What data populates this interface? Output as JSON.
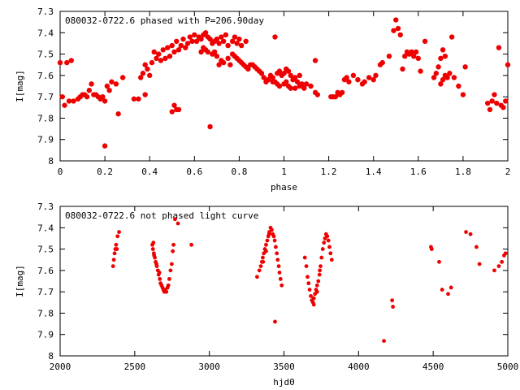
{
  "chart_data": [
    {
      "type": "scatter",
      "title": "080032-0722.6 phased with P=206.90day",
      "xlabel": "phase",
      "ylabel": "I[mag]",
      "xlim": [
        0,
        2
      ],
      "ylim": [
        7.3,
        8
      ],
      "y_inverted": true,
      "xticks": [
        "0",
        "0.2",
        "0.4",
        "0.6",
        "0.8",
        "1",
        "1.2",
        "1.4",
        "1.6",
        "1.8",
        "2"
      ],
      "yticks": [
        "7.3",
        "7.4",
        "7.5",
        "7.6",
        "7.7",
        "7.8",
        "7.9",
        "8"
      ],
      "marker_color": "#ee0000",
      "points": [
        [
          0.0,
          7.54
        ],
        [
          0.01,
          7.7
        ],
        [
          0.02,
          7.74
        ],
        [
          0.03,
          7.54
        ],
        [
          0.05,
          7.53
        ],
        [
          0.04,
          7.72
        ],
        [
          0.06,
          7.72
        ],
        [
          0.08,
          7.71
        ],
        [
          0.09,
          7.7
        ],
        [
          0.1,
          7.69
        ],
        [
          0.11,
          7.69
        ],
        [
          0.12,
          7.7
        ],
        [
          0.13,
          7.67
        ],
        [
          0.14,
          7.64
        ],
        [
          0.15,
          7.69
        ],
        [
          0.16,
          7.69
        ],
        [
          0.17,
          7.7
        ],
        [
          0.18,
          7.71
        ],
        [
          0.19,
          7.7
        ],
        [
          0.2,
          7.72
        ],
        [
          0.21,
          7.65
        ],
        [
          0.22,
          7.67
        ],
        [
          0.2,
          7.93
        ],
        [
          0.23,
          7.63
        ],
        [
          0.25,
          7.64
        ],
        [
          0.26,
          7.78
        ],
        [
          0.28,
          7.61
        ],
        [
          0.33,
          7.71
        ],
        [
          0.35,
          7.71
        ],
        [
          0.36,
          7.61
        ],
        [
          0.37,
          7.59
        ],
        [
          0.38,
          7.69
        ],
        [
          0.38,
          7.55
        ],
        [
          0.39,
          7.57
        ],
        [
          0.4,
          7.6
        ],
        [
          0.41,
          7.54
        ],
        [
          0.42,
          7.49
        ],
        [
          0.43,
          7.52
        ],
        [
          0.44,
          7.5
        ],
        [
          0.45,
          7.53
        ],
        [
          0.46,
          7.48
        ],
        [
          0.47,
          7.52
        ],
        [
          0.48,
          7.47
        ],
        [
          0.49,
          7.51
        ],
        [
          0.5,
          7.46
        ],
        [
          0.51,
          7.49
        ],
        [
          0.52,
          7.44
        ],
        [
          0.53,
          7.48
        ],
        [
          0.54,
          7.46
        ],
        [
          0.55,
          7.43
        ],
        [
          0.56,
          7.47
        ],
        [
          0.57,
          7.45
        ],
        [
          0.58,
          7.42
        ],
        [
          0.59,
          7.44
        ],
        [
          0.6,
          7.41
        ],
        [
          0.61,
          7.44
        ],
        [
          0.62,
          7.42
        ],
        [
          0.63,
          7.43
        ],
        [
          0.64,
          7.41
        ],
        [
          0.65,
          7.4
        ],
        [
          0.66,
          7.42
        ],
        [
          0.67,
          7.43
        ],
        [
          0.68,
          7.45
        ],
        [
          0.69,
          7.44
        ],
        [
          0.7,
          7.43
        ],
        [
          0.71,
          7.45
        ],
        [
          0.72,
          7.42
        ],
        [
          0.73,
          7.44
        ],
        [
          0.74,
          7.41
        ],
        [
          0.75,
          7.46
        ],
        [
          0.77,
          7.44
        ],
        [
          0.78,
          7.42
        ],
        [
          0.79,
          7.45
        ],
        [
          0.8,
          7.43
        ],
        [
          0.81,
          7.46
        ],
        [
          0.83,
          7.44
        ],
        [
          0.63,
          7.49
        ],
        [
          0.64,
          7.47
        ],
        [
          0.65,
          7.48
        ],
        [
          0.66,
          7.49
        ],
        [
          0.68,
          7.5
        ],
        [
          0.69,
          7.49
        ],
        [
          0.7,
          7.51
        ],
        [
          0.71,
          7.55
        ],
        [
          0.72,
          7.53
        ],
        [
          0.73,
          7.54
        ],
        [
          0.75,
          7.52
        ],
        [
          0.76,
          7.55
        ],
        [
          0.77,
          7.5
        ],
        [
          0.78,
          7.51
        ],
        [
          0.79,
          7.52
        ],
        [
          0.8,
          7.53
        ],
        [
          0.81,
          7.54
        ],
        [
          0.82,
          7.55
        ],
        [
          0.83,
          7.56
        ],
        [
          0.85,
          7.55
        ],
        [
          0.84,
          7.57
        ],
        [
          0.86,
          7.55
        ],
        [
          0.87,
          7.56
        ],
        [
          0.88,
          7.57
        ],
        [
          0.89,
          7.58
        ],
        [
          0.9,
          7.59
        ],
        [
          0.91,
          7.61
        ],
        [
          0.92,
          7.63
        ],
        [
          0.93,
          7.62
        ],
        [
          0.94,
          7.6
        ],
        [
          0.95,
          7.61
        ],
        [
          0.96,
          7.63
        ],
        [
          0.97,
          7.59
        ],
        [
          0.98,
          7.58
        ],
        [
          0.99,
          7.6
        ],
        [
          1.0,
          7.59
        ],
        [
          1.01,
          7.57
        ],
        [
          1.02,
          7.58
        ],
        [
          1.03,
          7.6
        ],
        [
          1.04,
          7.62
        ],
        [
          1.05,
          7.61
        ],
        [
          1.06,
          7.63
        ],
        [
          1.07,
          7.6
        ],
        [
          1.08,
          7.64
        ],
        [
          1.1,
          7.64
        ],
        [
          1.12,
          7.65
        ],
        [
          1.14,
          7.68
        ],
        [
          1.15,
          7.69
        ],
        [
          1.0,
          7.64
        ],
        [
          1.01,
          7.63
        ],
        [
          1.02,
          7.65
        ],
        [
          1.03,
          7.66
        ],
        [
          1.05,
          7.66
        ],
        [
          1.07,
          7.65
        ],
        [
          1.09,
          7.66
        ],
        [
          0.97,
          7.64
        ],
        [
          0.98,
          7.65
        ],
        [
          0.95,
          7.63
        ],
        [
          0.96,
          7.42
        ],
        [
          0.5,
          7.77
        ],
        [
          0.51,
          7.74
        ],
        [
          0.52,
          7.76
        ],
        [
          0.53,
          7.76
        ],
        [
          0.67,
          7.84
        ],
        [
          1.14,
          7.53
        ],
        [
          1.21,
          7.7
        ],
        [
          1.22,
          7.7
        ],
        [
          1.23,
          7.7
        ],
        [
          1.24,
          7.68
        ],
        [
          1.25,
          7.69
        ],
        [
          1.26,
          7.68
        ],
        [
          1.27,
          7.62
        ],
        [
          1.28,
          7.61
        ],
        [
          1.29,
          7.63
        ],
        [
          1.31,
          7.6
        ],
        [
          1.33,
          7.62
        ],
        [
          1.35,
          7.64
        ],
        [
          1.36,
          7.63
        ],
        [
          1.38,
          7.61
        ],
        [
          1.4,
          7.62
        ],
        [
          1.41,
          7.6
        ],
        [
          1.43,
          7.55
        ],
        [
          1.44,
          7.54
        ],
        [
          1.47,
          7.51
        ],
        [
          1.49,
          7.39
        ],
        [
          1.5,
          7.34
        ],
        [
          1.51,
          7.38
        ],
        [
          1.52,
          7.41
        ],
        [
          1.53,
          7.57
        ],
        [
          1.54,
          7.51
        ],
        [
          1.55,
          7.49
        ],
        [
          1.56,
          7.5
        ],
        [
          1.57,
          7.49
        ],
        [
          1.58,
          7.51
        ],
        [
          1.59,
          7.49
        ],
        [
          1.6,
          7.52
        ],
        [
          1.61,
          7.58
        ],
        [
          1.63,
          7.44
        ],
        [
          1.67,
          7.61
        ],
        [
          1.68,
          7.59
        ],
        [
          1.69,
          7.56
        ],
        [
          1.7,
          7.52
        ],
        [
          1.71,
          7.48
        ],
        [
          1.72,
          7.51
        ],
        [
          1.7,
          7.64
        ],
        [
          1.71,
          7.62
        ],
        [
          1.72,
          7.6
        ],
        [
          1.73,
          7.61
        ],
        [
          1.74,
          7.59
        ],
        [
          1.75,
          7.42
        ],
        [
          1.76,
          7.61
        ],
        [
          1.78,
          7.65
        ],
        [
          1.8,
          7.69
        ],
        [
          1.81,
          7.56
        ],
        [
          1.91,
          7.73
        ],
        [
          1.92,
          7.76
        ],
        [
          1.93,
          7.72
        ],
        [
          1.94,
          7.69
        ],
        [
          1.95,
          7.73
        ],
        [
          1.96,
          7.47
        ],
        [
          1.97,
          7.74
        ],
        [
          1.98,
          7.75
        ],
        [
          1.99,
          7.72
        ],
        [
          2.0,
          7.55
        ]
      ]
    },
    {
      "type": "scatter",
      "title": "080032-0722.6 not phased light curve",
      "xlabel": "hjd0",
      "ylabel": "I[mag]",
      "xlim": [
        2000,
        5000
      ],
      "ylim": [
        7.3,
        8
      ],
      "y_inverted": true,
      "xticks": [
        "2000",
        "2500",
        "3000",
        "3500",
        "4000",
        "4500",
        "5000"
      ],
      "yticks": [
        "7.3",
        "7.4",
        "7.5",
        "7.6",
        "7.7",
        "7.8",
        "7.9",
        "8"
      ],
      "marker_color": "#ee0000",
      "points": [
        [
          2355,
          7.58
        ],
        [
          2360,
          7.55
        ],
        [
          2365,
          7.52
        ],
        [
          2370,
          7.5
        ],
        [
          2375,
          7.48
        ],
        [
          2380,
          7.5
        ],
        [
          2385,
          7.44
        ],
        [
          2395,
          7.42
        ],
        [
          2618,
          7.48
        ],
        [
          2622,
          7.5
        ],
        [
          2628,
          7.52
        ],
        [
          2635,
          7.54
        ],
        [
          2640,
          7.56
        ],
        [
          2648,
          7.58
        ],
        [
          2655,
          7.6
        ],
        [
          2660,
          7.62
        ],
        [
          2668,
          7.64
        ],
        [
          2673,
          7.66
        ],
        [
          2680,
          7.67
        ],
        [
          2686,
          7.68
        ],
        [
          2692,
          7.69
        ],
        [
          2698,
          7.7
        ],
        [
          2705,
          7.69
        ],
        [
          2712,
          7.7
        ],
        [
          2720,
          7.68
        ],
        [
          2725,
          7.67
        ],
        [
          2732,
          7.64
        ],
        [
          2740,
          7.6
        ],
        [
          2748,
          7.57
        ],
        [
          2755,
          7.51
        ],
        [
          2760,
          7.48
        ],
        [
          2770,
          7.36
        ],
        [
          2790,
          7.38
        ],
        [
          2880,
          7.48
        ],
        [
          2625,
          7.47
        ],
        [
          2630,
          7.53
        ],
        [
          2645,
          7.57
        ],
        [
          2665,
          7.61
        ],
        [
          3320,
          7.63
        ],
        [
          3335,
          7.6
        ],
        [
          3345,
          7.58
        ],
        [
          3352,
          7.56
        ],
        [
          3358,
          7.54
        ],
        [
          3365,
          7.52
        ],
        [
          3372,
          7.5
        ],
        [
          3380,
          7.48
        ],
        [
          3388,
          7.46
        ],
        [
          3395,
          7.44
        ],
        [
          3402,
          7.42
        ],
        [
          3410,
          7.4
        ],
        [
          3418,
          7.41
        ],
        [
          3425,
          7.43
        ],
        [
          3432,
          7.44
        ],
        [
          3438,
          7.46
        ],
        [
          3445,
          7.49
        ],
        [
          3452,
          7.52
        ],
        [
          3458,
          7.55
        ],
        [
          3465,
          7.58
        ],
        [
          3470,
          7.61
        ],
        [
          3477,
          7.64
        ],
        [
          3485,
          7.67
        ],
        [
          3440,
          7.84
        ],
        [
          3360,
          7.56
        ],
        [
          3380,
          7.51
        ],
        [
          3400,
          7.43
        ],
        [
          3640,
          7.54
        ],
        [
          3650,
          7.58
        ],
        [
          3658,
          7.63
        ],
        [
          3665,
          7.66
        ],
        [
          3672,
          7.69
        ],
        [
          3680,
          7.72
        ],
        [
          3687,
          7.74
        ],
        [
          3695,
          7.75
        ],
        [
          3700,
          7.73
        ],
        [
          3708,
          7.71
        ],
        [
          3715,
          7.69
        ],
        [
          3722,
          7.67
        ],
        [
          3730,
          7.65
        ],
        [
          3738,
          7.62
        ],
        [
          3745,
          7.58
        ],
        [
          3752,
          7.54
        ],
        [
          3760,
          7.5
        ],
        [
          3768,
          7.47
        ],
        [
          3775,
          7.45
        ],
        [
          3782,
          7.43
        ],
        [
          3790,
          7.44
        ],
        [
          3798,
          7.46
        ],
        [
          3805,
          7.49
        ],
        [
          3812,
          7.52
        ],
        [
          3820,
          7.55
        ],
        [
          3700,
          7.76
        ],
        [
          3722,
          7.7
        ],
        [
          3740,
          7.6
        ],
        [
          4170,
          7.93
        ],
        [
          4225,
          7.74
        ],
        [
          4230,
          7.77
        ],
        [
          4485,
          7.49
        ],
        [
          4490,
          7.5
        ],
        [
          4540,
          7.56
        ],
        [
          4560,
          7.69
        ],
        [
          4600,
          7.71
        ],
        [
          4620,
          7.68
        ],
        [
          4720,
          7.42
        ],
        [
          4750,
          7.43
        ],
        [
          4790,
          7.49
        ],
        [
          4810,
          7.57
        ],
        [
          4910,
          7.6
        ],
        [
          4940,
          7.58
        ],
        [
          4960,
          7.56
        ],
        [
          4975,
          7.53
        ],
        [
          4985,
          7.52
        ]
      ]
    }
  ]
}
